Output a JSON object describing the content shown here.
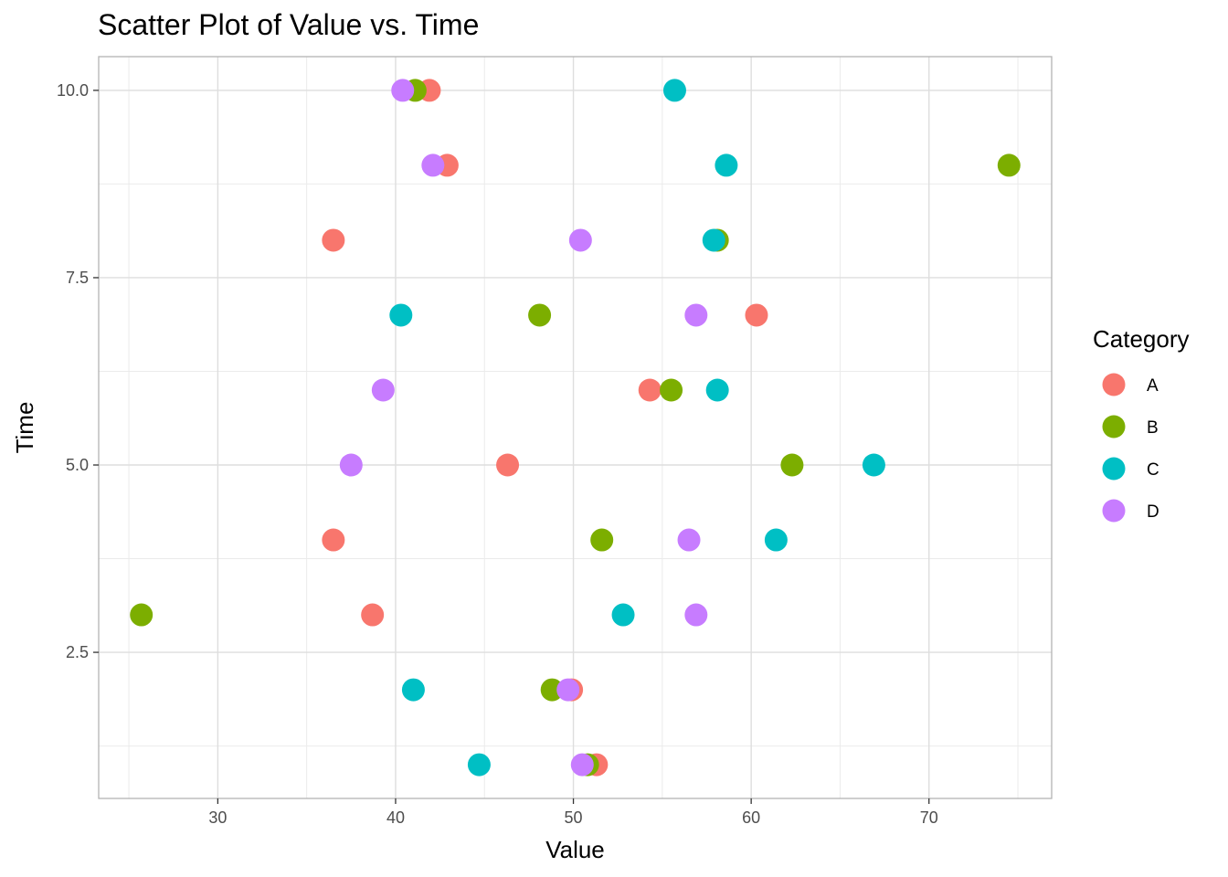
{
  "chart_data": {
    "type": "scatter",
    "title": "Scatter Plot of Value vs. Time",
    "xlabel": "Value",
    "ylabel": "Time",
    "xlim": [
      23.3,
      76.9
    ],
    "ylim": [
      0.55,
      10.45
    ],
    "x_ticks": [
      30,
      40,
      50,
      60,
      70
    ],
    "x_tick_labels": [
      "30",
      "40",
      "50",
      "60",
      "70"
    ],
    "y_ticks": [
      2.5,
      5.0,
      7.5,
      10.0
    ],
    "y_tick_labels": [
      "2.5",
      "5.0",
      "7.5",
      "10.0"
    ],
    "grid": true,
    "legend": {
      "title": "Category",
      "position": "right"
    },
    "colors": {
      "A": "#F8766D",
      "B": "#7CAE00",
      "C": "#00BFC4",
      "D": "#C77CFF"
    },
    "series": [
      {
        "name": "A",
        "x": [
          51.3,
          49.9,
          38.7,
          36.5,
          46.3,
          54.3,
          60.3,
          36.5,
          42.9,
          41.9
        ],
        "y": [
          1,
          2,
          3,
          4,
          5,
          6,
          7,
          8,
          9,
          10
        ]
      },
      {
        "name": "B",
        "x": [
          50.8,
          48.8,
          25.7,
          51.6,
          62.3,
          55.5,
          48.1,
          58.1,
          74.5,
          41.1
        ],
        "y": [
          1,
          2,
          3,
          4,
          5,
          6,
          7,
          8,
          9,
          10
        ]
      },
      {
        "name": "C",
        "x": [
          44.7,
          41.0,
          52.8,
          61.4,
          66.9,
          58.1,
          40.3,
          57.9,
          58.6,
          55.7
        ],
        "y": [
          1,
          2,
          3,
          4,
          5,
          6,
          7,
          8,
          9,
          10
        ]
      },
      {
        "name": "D",
        "x": [
          50.5,
          49.7,
          56.9,
          56.5,
          37.5,
          39.3,
          56.9,
          50.4,
          42.1,
          40.4
        ],
        "y": [
          1,
          2,
          3,
          4,
          5,
          6,
          7,
          8,
          9,
          10
        ]
      }
    ]
  }
}
